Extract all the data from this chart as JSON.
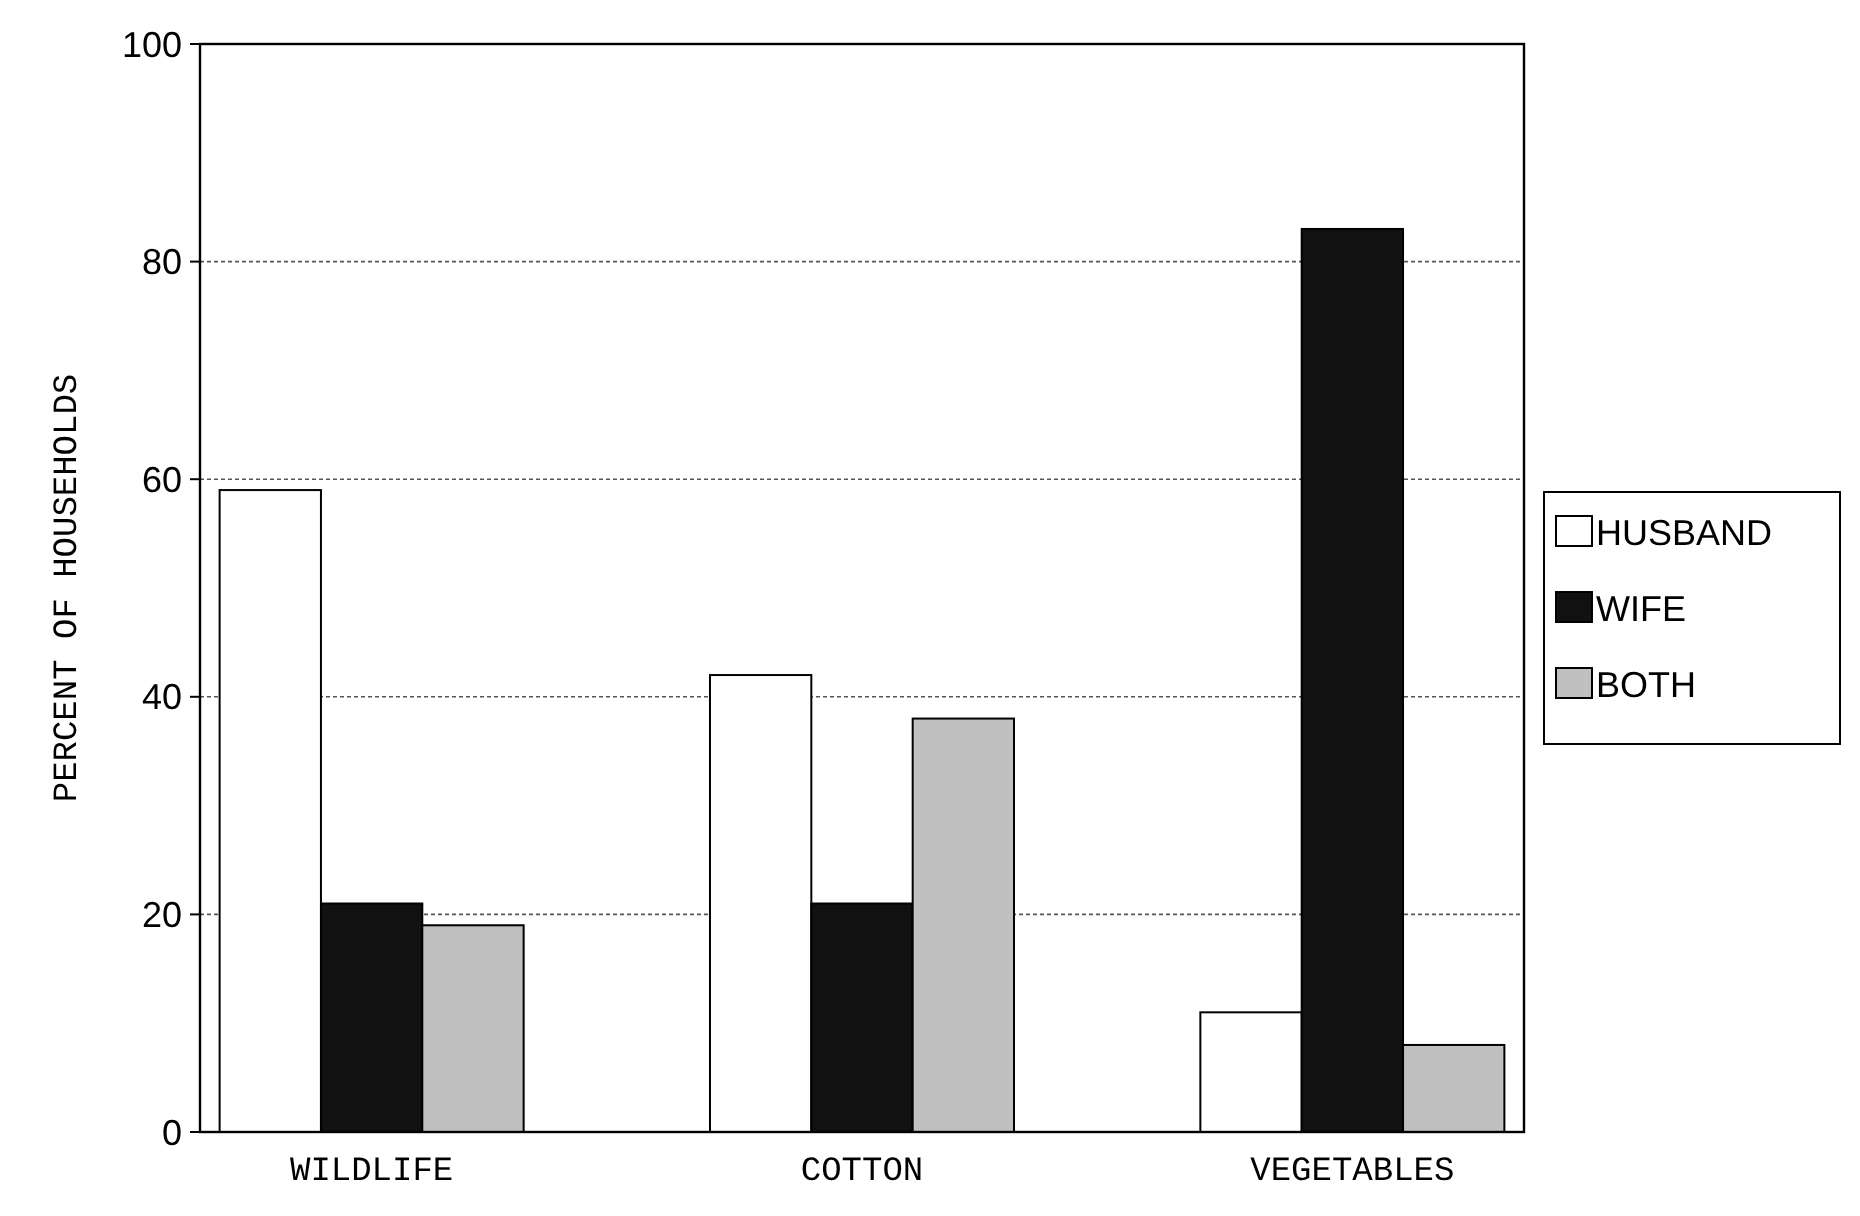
{
  "chart_data": {
    "type": "bar",
    "ylabel": "PERCENT OF HOUSEHOLDS",
    "categories": [
      "WILDLIFE",
      "COTTON",
      "VEGETABLES"
    ],
    "series": [
      {
        "name": "HUSBAND",
        "color": "#ffffff",
        "values": [
          59,
          42,
          11
        ]
      },
      {
        "name": "WIFE",
        "color": "#111111",
        "values": [
          21,
          21,
          83
        ]
      },
      {
        "name": "BOTH",
        "color": "#c0c0c0",
        "values": [
          19,
          38,
          8
        ]
      }
    ],
    "ylim": [
      0,
      100
    ],
    "yticks": [
      0,
      20,
      40,
      60,
      80,
      100
    ],
    "grid": "y",
    "legend": "right"
  }
}
